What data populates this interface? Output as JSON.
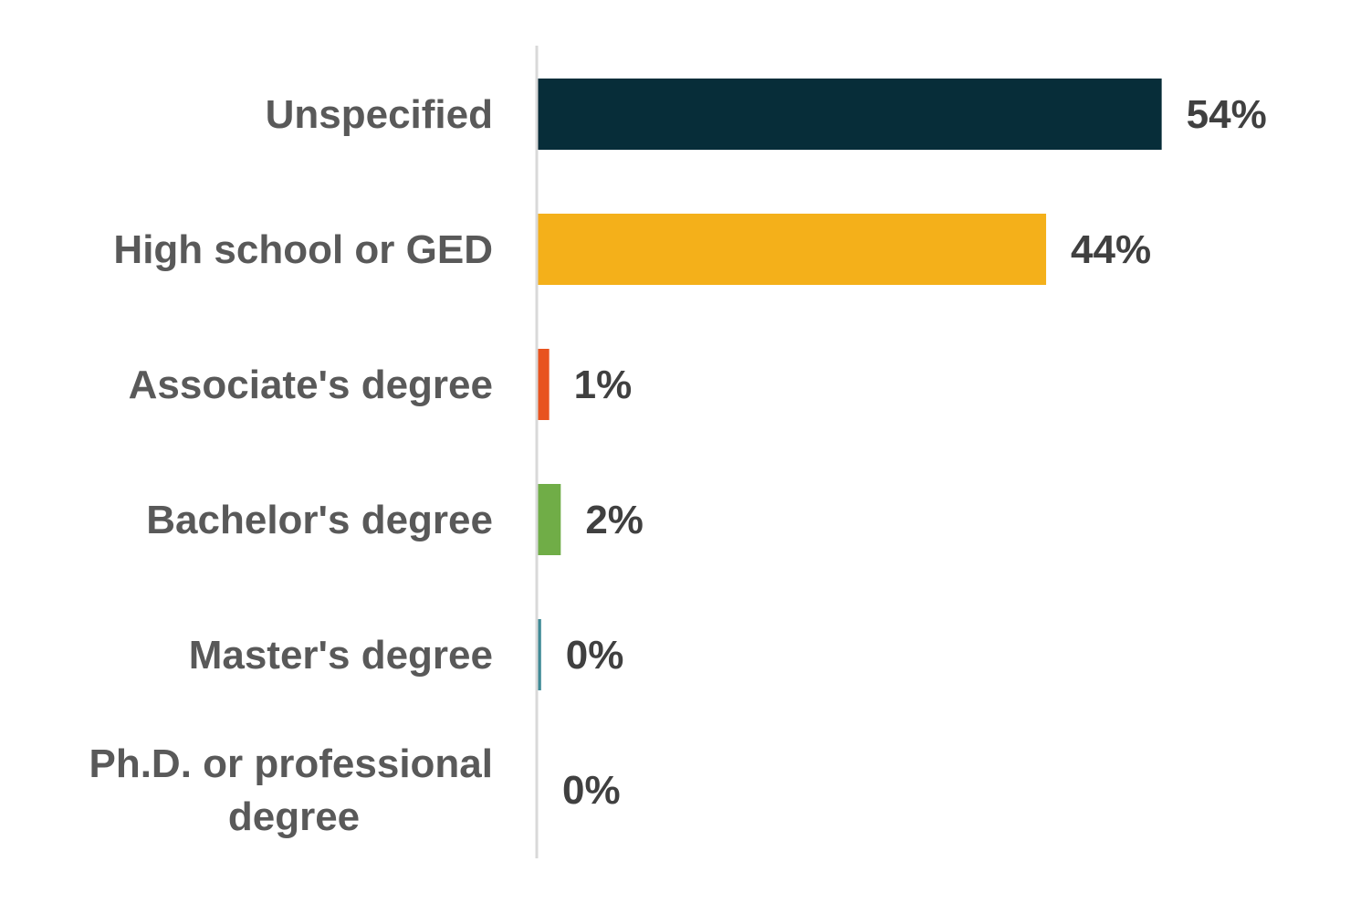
{
  "chart_data": {
    "type": "bar",
    "orientation": "horizontal",
    "categories": [
      "Unspecified",
      "High school or GED",
      "Associate's degree",
      "Bachelor's degree",
      "Master's degree",
      "Ph.D. or professional degree"
    ],
    "category_lines": [
      [
        "Unspecified"
      ],
      [
        "High school or GED"
      ],
      [
        "Associate's degree"
      ],
      [
        "Bachelor's degree"
      ],
      [
        "Master's degree"
      ],
      [
        "Ph.D. or professional",
        "degree"
      ]
    ],
    "values": [
      54,
      44,
      1,
      2,
      0.3,
      0
    ],
    "data_labels": [
      "54%",
      "44%",
      "1%",
      "2%",
      "0%",
      "0%"
    ],
    "colors": [
      "#072d39",
      "#f4b01a",
      "#e8531f",
      "#70ad47",
      "#3f8a96",
      "#d9d9d9"
    ],
    "axis_color": "#d9d9d9",
    "xlim": [
      0,
      60
    ],
    "title": "",
    "xlabel": "",
    "ylabel": "",
    "grid": false,
    "legend": "none"
  }
}
